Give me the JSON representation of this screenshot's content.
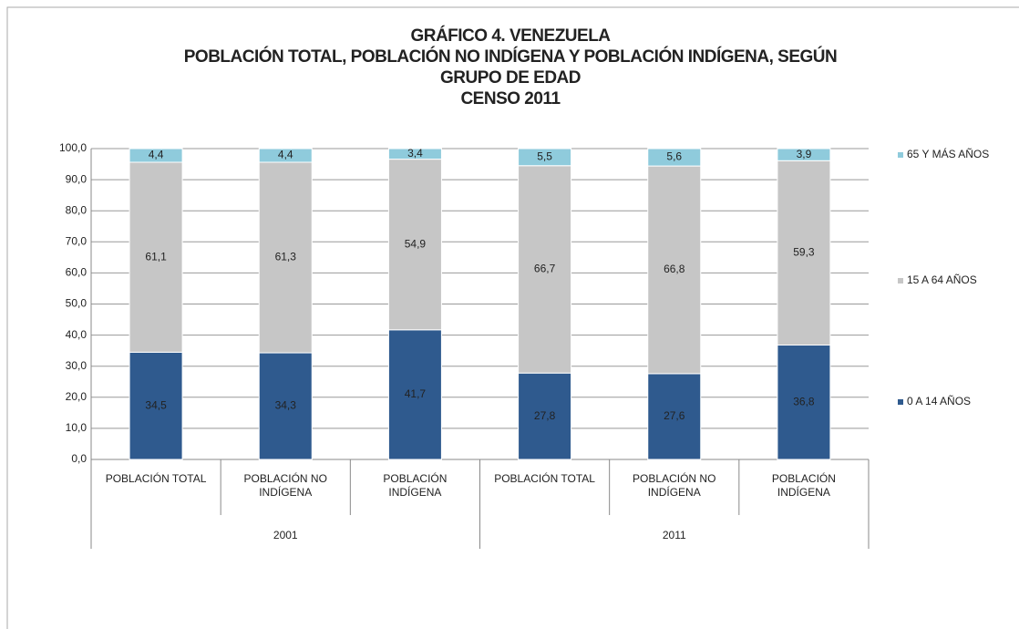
{
  "chart_data": {
    "type": "stacked_bar",
    "title": [
      "GRÁFICO 4. VENEZUELA",
      "POBLACIÓN TOTAL, POBLACIÓN NO INDÍGENA Y POBLACIÓN INDÍGENA, SEGÚN",
      "GRUPO DE EDAD",
      "CENSO 2011"
    ],
    "categories": [
      "POBLACIÓN TOTAL",
      "POBLACIÓN NO INDÍGENA",
      "POBLACIÓN INDÍGENA",
      "POBLACIÓN TOTAL",
      "POBLACIÓN NO INDÍGENA",
      "POBLACIÓN INDÍGENA"
    ],
    "groups": [
      {
        "label": "2001",
        "size": 3
      },
      {
        "label": "2011",
        "size": 3
      }
    ],
    "series": [
      {
        "name": "0 A 14 AÑOS",
        "color": "#2f5a8e",
        "values": [
          34.5,
          34.3,
          41.7,
          27.8,
          27.6,
          36.8
        ],
        "value_labels": [
          "34,5",
          "34,3",
          "41,7",
          "27,8",
          "27,6",
          "36,8"
        ]
      },
      {
        "name": "15 A 64 AÑOS",
        "color": "#c6c6c6",
        "values": [
          61.1,
          61.3,
          54.9,
          66.7,
          66.8,
          59.3
        ],
        "value_labels": [
          "61,1",
          "61,3",
          "54,9",
          "66,7",
          "66,8",
          "59,3"
        ]
      },
      {
        "name": "65 Y MÁS AÑOS",
        "color": "#8fcbdc",
        "values": [
          4.4,
          4.4,
          3.4,
          5.5,
          5.6,
          3.9
        ],
        "value_labels": [
          "4,4",
          "4,4",
          "3,4",
          "5,5",
          "5,6",
          "3,9"
        ]
      }
    ],
    "ylim": [
      0,
      100
    ],
    "yticks": [
      {
        "value": 0,
        "label": "0,0"
      },
      {
        "value": 10,
        "label": "10,0"
      },
      {
        "value": 20,
        "label": "20,0"
      },
      {
        "value": 30,
        "label": "30,0"
      },
      {
        "value": 40,
        "label": "40,0"
      },
      {
        "value": 50,
        "label": "50,0"
      },
      {
        "value": 60,
        "label": "60,0"
      },
      {
        "value": 70,
        "label": "70,0"
      },
      {
        "value": 80,
        "label": "80,0"
      },
      {
        "value": 90,
        "label": "90,0"
      },
      {
        "value": 100,
        "label": "100,0"
      }
    ],
    "grid": true,
    "legend": "right"
  }
}
